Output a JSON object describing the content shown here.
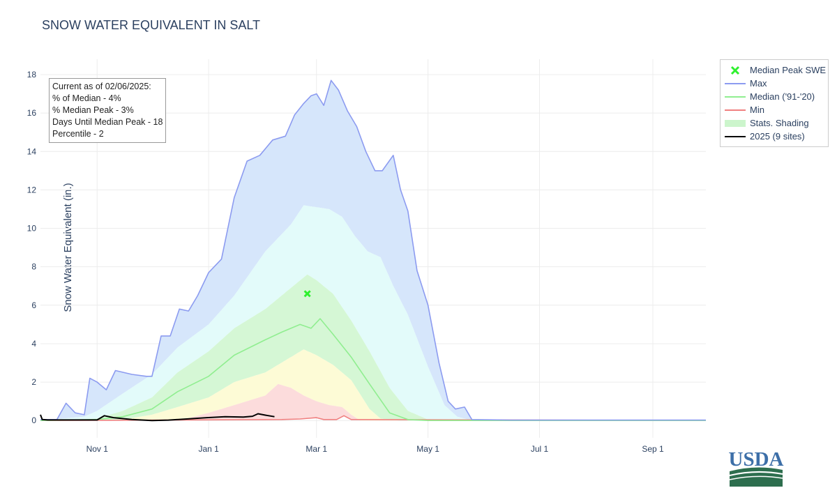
{
  "chart_data": {
    "type": "area",
    "title": "SNOW WATER EQUIVALENT IN SALT",
    "xlabel": "",
    "ylabel": "Snow Water Equivalent (in.)",
    "x_tick_labels": [
      "Nov  1",
      "Jan  1",
      "Mar  1",
      "May  1",
      "Jul  1",
      "Sep  1"
    ],
    "y_ticks": [
      0,
      2,
      4,
      6,
      8,
      10,
      12,
      14,
      16,
      18
    ],
    "ylim": [
      -0.9,
      18.8
    ],
    "xlim": [
      "2024-10-01",
      "2025-09-30"
    ],
    "grid": true,
    "legend_position": "right",
    "median_peak_swe": {
      "name": "Median Peak SWE",
      "date": "2025-02-24",
      "value": 6.6
    },
    "series": [
      {
        "name": "Max",
        "color": "#8c9bf0",
        "x": [
          "2024-10-01",
          "2024-10-10",
          "2024-10-15",
          "2024-10-20",
          "2024-10-25",
          "2024-10-28",
          "2024-11-01",
          "2024-11-06",
          "2024-11-11",
          "2024-11-20",
          "2024-11-28",
          "2024-12-01",
          "2024-12-06",
          "2024-12-11",
          "2024-12-16",
          "2024-12-21",
          "2024-12-26",
          "2025-01-01",
          "2025-01-08",
          "2025-01-15",
          "2025-01-22",
          "2025-01-29",
          "2025-02-05",
          "2025-02-12",
          "2025-02-17",
          "2025-02-22",
          "2025-02-26",
          "2025-03-01",
          "2025-03-05",
          "2025-03-09",
          "2025-03-13",
          "2025-03-18",
          "2025-03-23",
          "2025-03-28",
          "2025-04-02",
          "2025-04-06",
          "2025-04-12",
          "2025-04-16",
          "2025-04-20",
          "2025-04-25",
          "2025-05-01",
          "2025-05-07",
          "2025-05-12",
          "2025-05-16",
          "2025-05-21",
          "2025-05-25",
          "2025-06-15",
          "2025-08-15",
          "2025-09-30"
        ],
        "values": [
          0.05,
          0.05,
          0.9,
          0.4,
          0.3,
          2.2,
          2.0,
          1.6,
          2.6,
          2.4,
          2.3,
          2.3,
          4.4,
          4.4,
          5.8,
          5.7,
          6.5,
          7.7,
          8.4,
          11.6,
          13.5,
          13.8,
          14.6,
          14.8,
          15.9,
          16.5,
          16.9,
          17.0,
          16.4,
          17.7,
          17.2,
          16.1,
          15.3,
          14.0,
          13.0,
          13.0,
          13.8,
          12.0,
          10.9,
          7.8,
          6.0,
          3.0,
          1.0,
          0.6,
          0.7,
          0.05,
          0.02,
          0.02,
          0.02
        ]
      },
      {
        "name": "Median ('91-'20)",
        "color": "#90ee90",
        "x": [
          "2024-10-01",
          "2024-11-01",
          "2024-11-15",
          "2024-12-01",
          "2024-12-15",
          "2025-01-01",
          "2025-01-15",
          "2025-02-01",
          "2025-02-10",
          "2025-02-20",
          "2025-02-26",
          "2025-03-03",
          "2025-03-10",
          "2025-03-20",
          "2025-03-30",
          "2025-04-10",
          "2025-04-20",
          "2025-05-01",
          "2025-05-10",
          "2025-09-30"
        ],
        "values": [
          0.0,
          0.05,
          0.2,
          0.6,
          1.5,
          2.3,
          3.4,
          4.2,
          4.6,
          5.0,
          4.8,
          5.3,
          4.5,
          3.3,
          1.9,
          0.4,
          0.05,
          0.0,
          0.0,
          0.0
        ]
      },
      {
        "name": "Min",
        "color": "#f08080",
        "x": [
          "2024-10-01",
          "2025-02-10",
          "2025-02-20",
          "2025-03-01",
          "2025-03-05",
          "2025-03-12",
          "2025-03-16",
          "2025-03-20",
          "2025-09-30"
        ],
        "values": [
          0.0,
          0.05,
          0.08,
          0.15,
          0.05,
          0.05,
          0.25,
          0.05,
          0.0
        ]
      },
      {
        "name": "Stats. Shading",
        "color": "#ccf5cc"
      },
      {
        "name": "2025 (9 sites)",
        "color": "#000000",
        "x": [
          "2024-10-01",
          "2024-10-02",
          "2024-10-05",
          "2024-10-20",
          "2024-11-01",
          "2024-11-05",
          "2024-11-10",
          "2024-11-20",
          "2024-12-01",
          "2024-12-10",
          "2024-12-20",
          "2024-12-31",
          "2025-01-10",
          "2025-01-20",
          "2025-01-25",
          "2025-01-28",
          "2025-02-01",
          "2025-02-06"
        ],
        "values": [
          0.3,
          0.05,
          0.03,
          0.03,
          0.03,
          0.25,
          0.15,
          0.05,
          0.0,
          0.02,
          0.08,
          0.15,
          0.2,
          0.18,
          0.22,
          0.35,
          0.28,
          0.2
        ]
      }
    ],
    "shading_bands": [
      {
        "name": "max_to_90th",
        "color": "#d6e6fb"
      },
      {
        "name": "90th_to_70th",
        "color": "#e3fbfa"
      },
      {
        "name": "70th_to_30th",
        "color": "#d5f7d5"
      },
      {
        "name": "30th_to_10th",
        "color": "#fdfbd6"
      },
      {
        "name": "10th_to_min",
        "color": "#fcdcdc"
      }
    ],
    "p90": {
      "x": [
        "2024-10-01",
        "2024-10-25",
        "2024-11-01",
        "2024-11-15",
        "2024-12-01",
        "2024-12-15",
        "2025-01-01",
        "2025-01-15",
        "2025-02-01",
        "2025-02-15",
        "2025-02-22",
        "2025-03-01",
        "2025-03-08",
        "2025-03-15",
        "2025-03-22",
        "2025-03-29",
        "2025-04-05",
        "2025-04-12",
        "2025-04-20",
        "2025-05-01",
        "2025-05-10",
        "2025-05-17",
        "2025-05-25"
      ],
      "values": [
        0.0,
        0.2,
        0.5,
        1.4,
        2.4,
        3.8,
        5.0,
        6.5,
        8.8,
        10.2,
        11.2,
        11.1,
        11.0,
        10.6,
        9.6,
        8.8,
        8.5,
        7.0,
        5.5,
        2.8,
        0.8,
        0.2,
        0.0
      ]
    },
    "p70": {
      "x": [
        "2024-10-01",
        "2024-11-01",
        "2024-11-15",
        "2024-12-01",
        "2024-12-15",
        "2025-01-01",
        "2025-01-15",
        "2025-02-01",
        "2025-02-15",
        "2025-02-24",
        "2025-03-01",
        "2025-03-10",
        "2025-03-20",
        "2025-03-30",
        "2025-04-10",
        "2025-04-20",
        "2025-05-01",
        "2025-05-10"
      ],
      "values": [
        0.0,
        0.1,
        0.5,
        1.2,
        2.5,
        3.6,
        4.8,
        5.8,
        6.9,
        7.6,
        7.3,
        6.6,
        5.2,
        3.6,
        1.7,
        0.5,
        0.05,
        0.0
      ]
    },
    "p30": {
      "x": [
        "2024-10-01",
        "2024-11-15",
        "2024-12-01",
        "2024-12-15",
        "2025-01-01",
        "2025-01-15",
        "2025-02-01",
        "2025-02-15",
        "2025-02-22",
        "2025-03-01",
        "2025-03-10",
        "2025-03-20",
        "2025-03-30",
        "2025-04-05",
        "2025-04-15"
      ],
      "values": [
        0.0,
        0.05,
        0.3,
        0.7,
        1.2,
        2.0,
        2.5,
        3.3,
        3.7,
        3.4,
        2.9,
        2.1,
        0.6,
        0.1,
        0.0
      ]
    },
    "p10": {
      "x": [
        "2024-10-01",
        "2024-12-10",
        "2024-12-20",
        "2025-01-01",
        "2025-01-15",
        "2025-02-01",
        "2025-02-08",
        "2025-02-15",
        "2025-02-22",
        "2025-03-01",
        "2025-03-08",
        "2025-03-15",
        "2025-03-20",
        "2025-03-25"
      ],
      "values": [
        0.0,
        0.0,
        0.1,
        0.4,
        0.8,
        1.3,
        1.9,
        1.7,
        1.3,
        1.0,
        0.8,
        0.7,
        0.3,
        0.0
      ]
    }
  },
  "info_box": {
    "line1": "Current as of 02/06/2025:",
    "line2": "% of Median - 4%",
    "line3": "% Median Peak - 3%",
    "line4": "Days Until Median Peak - 18",
    "line5": "Percentile - 2"
  },
  "legend": {
    "items": [
      "Median Peak SWE",
      "Max",
      "Median ('91-'20)",
      "Min",
      "Stats. Shading",
      "2025 (9 sites)"
    ]
  },
  "logo": {
    "text": "USDA"
  }
}
